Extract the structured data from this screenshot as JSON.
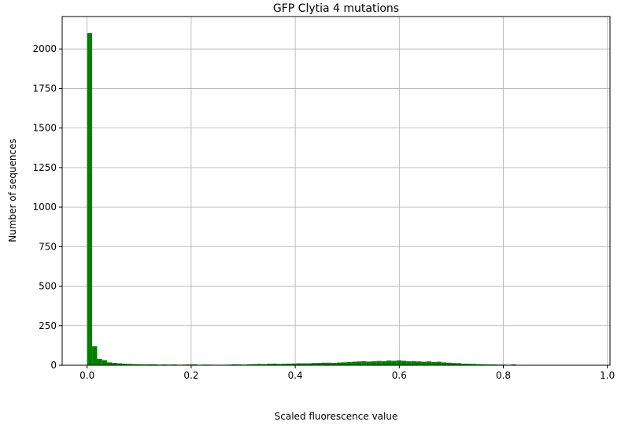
{
  "chart_data": {
    "type": "bar",
    "title": "GFP Clytia 4 mutations",
    "xlabel": "Scaled fluorescence value",
    "ylabel": "Number of sequences",
    "xlim": [
      -0.048,
      1.005
    ],
    "ylim": [
      0,
      2205
    ],
    "xticks": [
      0.0,
      0.2,
      0.4,
      0.6,
      0.8,
      1.0
    ],
    "xtick_labels": [
      "0.0",
      "0.2",
      "0.4",
      "0.6",
      "0.8",
      "1.0"
    ],
    "yticks": [
      0,
      250,
      500,
      750,
      1000,
      1250,
      1500,
      1750,
      2000
    ],
    "ytick_labels": [
      "0",
      "250",
      "500",
      "750",
      "1000",
      "1250",
      "1500",
      "1750",
      "2000"
    ],
    "grid": true,
    "bar_color": "#008000",
    "bin_start": 0.0,
    "bin_width": 0.00959,
    "bin_counts": [
      2100,
      120,
      40,
      32,
      18,
      15,
      12,
      10,
      8,
      7,
      6,
      5,
      6,
      6,
      4,
      5,
      4,
      5,
      3,
      4,
      5,
      6,
      3,
      4,
      4,
      3,
      3,
      3,
      4,
      6,
      5,
      4,
      6,
      7,
      8,
      7,
      9,
      10,
      8,
      9,
      10,
      11,
      12,
      12,
      12,
      14,
      15,
      16,
      16,
      15,
      17,
      18,
      20,
      22,
      24,
      25,
      23,
      25,
      27,
      26,
      30,
      28,
      31,
      28,
      25,
      26,
      24,
      22,
      24,
      20,
      22,
      18,
      16,
      14,
      13,
      10,
      9,
      8,
      7,
      6,
      5,
      5,
      4,
      4,
      3,
      6,
      2,
      2,
      1,
      1,
      1,
      1,
      0,
      2,
      0,
      1,
      0,
      0,
      0,
      1
    ]
  }
}
